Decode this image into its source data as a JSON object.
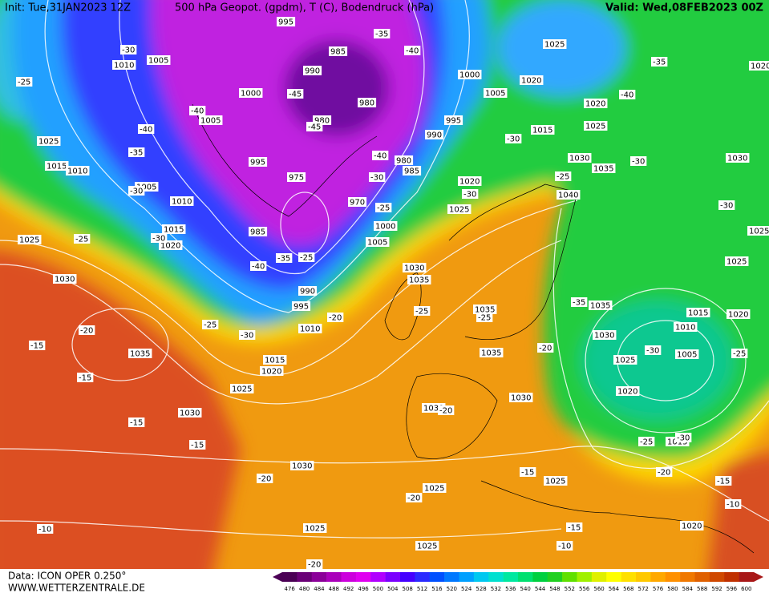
{
  "header": {
    "init": "Init: Tue,31JAN2023 12Z",
    "title": "500 hPa Geopot. (gpdm), T (C), Bodendruck (hPa)",
    "valid": "Valid: Wed,08FEB2023 00Z"
  },
  "footer": {
    "data": "Data: ICON OPER 0.250°",
    "site": "WWW.WETTERZENTRALE.DE"
  },
  "legend": {
    "values": [
      476,
      480,
      484,
      488,
      492,
      496,
      500,
      504,
      508,
      512,
      516,
      520,
      524,
      528,
      532,
      536,
      540,
      544,
      548,
      552,
      556,
      560,
      564,
      568,
      572,
      576,
      580,
      584,
      588,
      592,
      596,
      600
    ],
    "colors": [
      "#4b0055",
      "#6a0077",
      "#8b0099",
      "#aa00bb",
      "#cc00dd",
      "#e000f0",
      "#b000ff",
      "#7a00ff",
      "#4400ff",
      "#2a2aff",
      "#0050ff",
      "#0078ff",
      "#00a0ff",
      "#00c8f0",
      "#00e0d0",
      "#00e8a0",
      "#00e070",
      "#00d040",
      "#20d020",
      "#60e000",
      "#a0f000",
      "#e0f000",
      "#ffff00",
      "#ffe000",
      "#ffc800",
      "#ffa800",
      "#ff9000",
      "#f07800",
      "#e06000",
      "#d04800",
      "#c03000",
      "#a81818"
    ]
  },
  "pressure_labels": [
    995,
    985,
    990,
    1000,
    980,
    1005,
    980,
    975,
    995,
    970,
    980,
    985,
    990,
    995,
    1000,
    1005,
    1015,
    1020,
    1025,
    1020,
    1025,
    1030,
    1035,
    1040,
    1020,
    1025,
    1030,
    1035,
    1035,
    1035,
    1030,
    1030,
    1030,
    1030,
    1025,
    1025,
    1025,
    1025,
    1020,
    1020,
    1025,
    1030,
    1035,
    1005,
    1010,
    1015,
    1020,
    1025,
    1025,
    1030,
    1020,
    1015,
    1010,
    1015,
    1020,
    1025,
    990,
    995,
    985,
    1005,
    1000,
    1035,
    1030,
    1025,
    1020,
    1015,
    1010,
    1005,
    1015,
    1010,
    1025,
    1010,
    1005
  ],
  "temperature_labels": [
    -30,
    -25,
    -40,
    -35,
    -30,
    -25,
    -30,
    -40,
    -35,
    -40,
    -45,
    -45,
    -40,
    -30,
    -25,
    -35,
    -25,
    -40,
    -30,
    -25,
    -20,
    -25,
    -25,
    -20,
    -20,
    -15,
    -15,
    -15,
    -15,
    -20,
    -15,
    -20,
    -15,
    -10,
    -10,
    -20,
    -15,
    -10,
    -20,
    -25,
    -30,
    -25,
    -30,
    -35,
    -30,
    -25,
    -30,
    -35,
    -40,
    -30,
    -30,
    -20
  ]
}
